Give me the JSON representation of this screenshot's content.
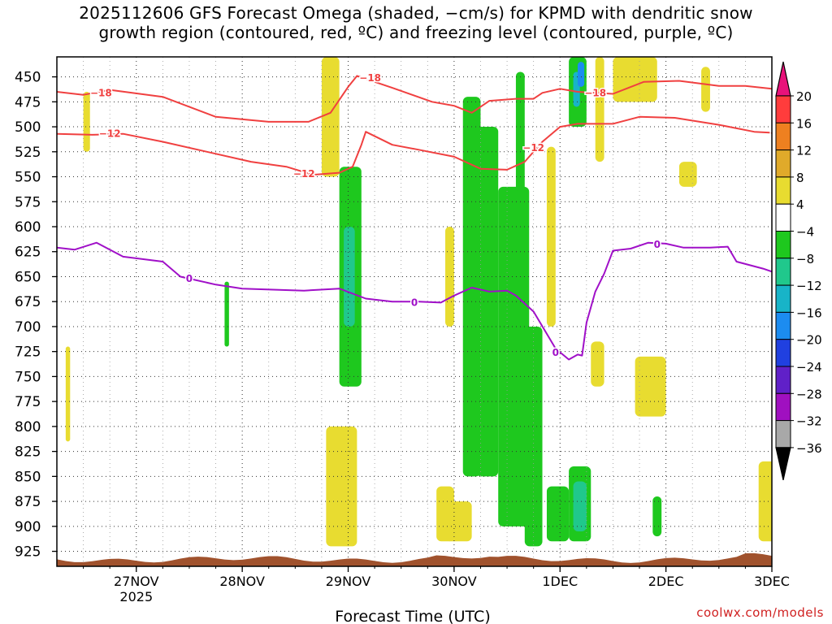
{
  "title": {
    "line1": "2025112606 GFS Forecast Omega (shaded, −cm/s) for KPMD with dendritic snow",
    "line2": "growth region (contoured, red, ºC) and freezing level (contoured, purple, ºC)"
  },
  "credit": "coolwx.com/models",
  "chart_data": {
    "type": "heatmap",
    "title": "2025112606 GFS Forecast Omega (shaded, −cm/s) for KPMD with dendritic snow growth region (contoured, red, ºC) and freezing level (contoured, purple, ºC)",
    "xlabel": "Forecast Time (UTC)",
    "ylabel": "Pressure (hPa)",
    "x_unit": "hours since 2025-11-26 06Z",
    "xlim": [
      0,
      162
    ],
    "ylim": [
      430,
      940
    ],
    "grid": true,
    "x_ticks": [
      {
        "x": 18,
        "label": "27NOV",
        "sublabel": "2025"
      },
      {
        "x": 42,
        "label": "28NOV",
        "sublabel": ""
      },
      {
        "x": 66,
        "label": "29NOV",
        "sublabel": ""
      },
      {
        "x": 90,
        "label": "30NOV",
        "sublabel": ""
      },
      {
        "x": 114,
        "label": "1DEC",
        "sublabel": ""
      },
      {
        "x": 138,
        "label": "2DEC",
        "sublabel": ""
      },
      {
        "x": 162,
        "label": "3DEC",
        "sublabel": ""
      }
    ],
    "y_ticks": [
      450,
      475,
      500,
      525,
      550,
      575,
      600,
      625,
      650,
      675,
      700,
      725,
      750,
      775,
      800,
      825,
      850,
      875,
      900,
      925
    ],
    "colorbar": {
      "labels": [
        "20",
        "16",
        "12",
        "8",
        "4",
        "−4",
        "−8",
        "−12",
        "−16",
        "−20",
        "−24",
        "−28",
        "−32",
        "−36"
      ],
      "bins": [
        {
          "from": 20,
          "to": 24,
          "color": "#e8127a"
        },
        {
          "from": 16,
          "to": 20,
          "color": "#ff3c3c"
        },
        {
          "from": 12,
          "to": 16,
          "color": "#ee8020"
        },
        {
          "from": 8,
          "to": 12,
          "color": "#e0aa2a"
        },
        {
          "from": 4,
          "to": 8,
          "color": "#e8dc30"
        },
        {
          "from": -4,
          "to": 4,
          "color": "#ffffff"
        },
        {
          "from": -8,
          "to": -4,
          "color": "#1ec81e"
        },
        {
          "from": -12,
          "to": -8,
          "color": "#20c88c"
        },
        {
          "from": -16,
          "to": -12,
          "color": "#18b4c8"
        },
        {
          "from": -20,
          "to": -16,
          "color": "#1c8cf0"
        },
        {
          "from": -24,
          "to": -20,
          "color": "#2040e0"
        },
        {
          "from": -28,
          "to": -24,
          "color": "#6020c8"
        },
        {
          "from": -32,
          "to": -28,
          "color": "#a010c0"
        },
        {
          "from": -36,
          "to": -32,
          "color": "#a8a8a8"
        },
        {
          "from": -40,
          "to": -36,
          "color": "#000000"
        }
      ]
    },
    "omega_regions": [
      {
        "t0": 126,
        "t1": 136,
        "p0": 430,
        "p1": 475,
        "value": 6
      },
      {
        "t0": 116,
        "t1": 120,
        "p0": 430,
        "p1": 500,
        "value": -6
      },
      {
        "t0": 117,
        "t1": 118.5,
        "p0": 445,
        "p1": 480,
        "value": -13
      },
      {
        "t0": 118,
        "t1": 119.5,
        "p0": 435,
        "p1": 460,
        "value": -18
      },
      {
        "t0": 122,
        "t1": 124,
        "p0": 430,
        "p1": 535,
        "value": 6
      },
      {
        "t0": 60,
        "t1": 64,
        "p0": 430,
        "p1": 550,
        "value": 5
      },
      {
        "t0": 64,
        "t1": 69,
        "p0": 540,
        "p1": 760,
        "value": -6
      },
      {
        "t0": 65,
        "t1": 67.5,
        "p0": 600,
        "p1": 700,
        "value": -9
      },
      {
        "t0": 92,
        "t1": 96,
        "p0": 470,
        "p1": 850,
        "value": -6
      },
      {
        "t0": 95,
        "t1": 100,
        "p0": 500,
        "p1": 850,
        "value": -6
      },
      {
        "t0": 100,
        "t1": 107,
        "p0": 560,
        "p1": 900,
        "value": -6
      },
      {
        "t0": 106,
        "t1": 110,
        "p0": 700,
        "p1": 920,
        "value": -6
      },
      {
        "t0": 111,
        "t1": 113,
        "p0": 520,
        "p1": 700,
        "value": 5
      },
      {
        "t0": 116,
        "t1": 121,
        "p0": 840,
        "p1": 915,
        "value": -6
      },
      {
        "t0": 117,
        "t1": 120,
        "p0": 855,
        "p1": 905,
        "value": -10
      },
      {
        "t0": 111,
        "t1": 116,
        "p0": 860,
        "p1": 915,
        "value": -6
      },
      {
        "t0": 121,
        "t1": 124,
        "p0": 715,
        "p1": 760,
        "value": 5
      },
      {
        "t0": 131,
        "t1": 138,
        "p0": 730,
        "p1": 790,
        "value": 5
      },
      {
        "t0": 135,
        "t1": 137,
        "p0": 870,
        "p1": 910,
        "value": -6
      },
      {
        "t0": 61,
        "t1": 68,
        "p0": 800,
        "p1": 920,
        "value": 5
      },
      {
        "t0": 86,
        "t1": 90,
        "p0": 860,
        "p1": 915,
        "value": 5
      },
      {
        "t0": 88,
        "t1": 94,
        "p0": 875,
        "p1": 915,
        "value": 5
      },
      {
        "t0": 159,
        "t1": 176,
        "p0": 835,
        "p1": 915,
        "value": 5
      },
      {
        "t0": 166,
        "t1": 169,
        "p0": 878,
        "p1": 895,
        "value": 9
      },
      {
        "t0": 169,
        "t1": 178,
        "p0": 530,
        "p1": 790,
        "value": -6
      },
      {
        "t0": 172,
        "t1": 178,
        "p0": 600,
        "p1": 780,
        "value": -8
      },
      {
        "t0": 175,
        "t1": 182,
        "p0": 500,
        "p1": 820,
        "value": -6
      },
      {
        "t0": 178,
        "t1": 181,
        "p0": 560,
        "p1": 760,
        "value": -10
      },
      {
        "t0": 182,
        "t1": 186,
        "p0": 435,
        "p1": 700,
        "value": -10
      },
      {
        "t0": 183,
        "t1": 185,
        "p0": 440,
        "p1": 520,
        "value": -14
      },
      {
        "t0": 186,
        "t1": 190,
        "p0": 560,
        "p1": 850,
        "value": -6
      },
      {
        "t0": 187,
        "t1": 190,
        "p0": 480,
        "p1": 560,
        "value": -10
      },
      {
        "t0": 2,
        "t1": 3,
        "p0": 720,
        "p1": 815,
        "value": 5
      },
      {
        "t0": 6,
        "t1": 7.5,
        "p0": 465,
        "p1": 525,
        "value": 5
      },
      {
        "t0": 38,
        "t1": 39,
        "p0": 655,
        "p1": 720,
        "value": -6
      },
      {
        "t0": 88,
        "t1": 90,
        "p0": 600,
        "p1": 700,
        "value": 5
      },
      {
        "t0": 104,
        "t1": 106,
        "p0": 445,
        "p1": 565,
        "value": -6
      },
      {
        "t0": 141,
        "t1": 145,
        "p0": 535,
        "p1": 560,
        "value": 5
      },
      {
        "t0": 146,
        "t1": 148,
        "p0": 440,
        "p1": 485,
        "value": 5
      },
      {
        "t0": 170,
        "t1": 174,
        "p0": 430,
        "p1": 470,
        "value": -6
      }
    ],
    "series": [
      {
        "name": "-18 ºC",
        "color": "#f04040",
        "label": "−18",
        "points": [
          [
            0,
            465
          ],
          [
            6,
            468
          ],
          [
            12,
            463
          ],
          [
            24,
            470
          ],
          [
            36,
            490
          ],
          [
            48,
            495
          ],
          [
            57,
            495
          ],
          [
            62,
            486
          ],
          [
            66,
            460
          ],
          [
            68,
            449
          ],
          [
            76,
            461
          ],
          [
            85,
            475
          ],
          [
            90,
            479
          ],
          [
            94,
            486
          ],
          [
            98,
            474
          ],
          [
            104,
            472
          ],
          [
            108,
            472
          ],
          [
            110,
            466
          ],
          [
            114,
            462
          ],
          [
            118,
            465
          ],
          [
            126,
            467
          ],
          [
            133,
            455
          ],
          [
            141,
            454
          ],
          [
            150,
            459
          ],
          [
            156,
            459
          ],
          [
            162,
            462
          ],
          [
            168,
            485
          ],
          [
            174,
            495
          ],
          [
            178,
            502
          ],
          [
            181,
            502
          ],
          [
            183,
            505
          ]
        ],
        "label_at": [
          [
            10,
            466
          ],
          [
            71,
            451
          ],
          [
            122,
            466
          ],
          [
            166,
            462
          ]
        ]
      },
      {
        "name": "-12 ºC",
        "color": "#f04040",
        "label": "−12",
        "points": [
          [
            0,
            507
          ],
          [
            8,
            508
          ],
          [
            15,
            507
          ],
          [
            24,
            515
          ],
          [
            34,
            525
          ],
          [
            44,
            535
          ],
          [
            52,
            540
          ],
          [
            58,
            548
          ],
          [
            64,
            546
          ],
          [
            67,
            540
          ],
          [
            69,
            518
          ],
          [
            70,
            505
          ],
          [
            76,
            518
          ],
          [
            82,
            523
          ],
          [
            90,
            530
          ],
          [
            96,
            542
          ],
          [
            102,
            543
          ],
          [
            106,
            535
          ],
          [
            110,
            515
          ],
          [
            114,
            500
          ],
          [
            118,
            497
          ],
          [
            126,
            497
          ],
          [
            132,
            490
          ],
          [
            140,
            491
          ],
          [
            150,
            498
          ],
          [
            158,
            505
          ],
          [
            162,
            506
          ],
          [
            166,
            520
          ],
          [
            171,
            540
          ],
          [
            176,
            560
          ],
          [
            180,
            578
          ],
          [
            183,
            578
          ]
        ],
        "label_at": [
          [
            12,
            507
          ],
          [
            56,
            547
          ],
          [
            108,
            521
          ],
          [
            164,
            506
          ]
        ]
      },
      {
        "name": "0 ºC",
        "color": "#a010c8",
        "label": "0",
        "points": [
          [
            0,
            621
          ],
          [
            4,
            623
          ],
          [
            9,
            616
          ],
          [
            15,
            630
          ],
          [
            24,
            635
          ],
          [
            28,
            650
          ],
          [
            36,
            658
          ],
          [
            42,
            662
          ],
          [
            56,
            664
          ],
          [
            64,
            662
          ],
          [
            70,
            672
          ],
          [
            76,
            675
          ],
          [
            82,
            675
          ],
          [
            87,
            676
          ],
          [
            90,
            669
          ],
          [
            94,
            661
          ],
          [
            98,
            665
          ],
          [
            102,
            664
          ],
          [
            104,
            669
          ],
          [
            108,
            685
          ],
          [
            113,
            722
          ],
          [
            116,
            733
          ],
          [
            118,
            728
          ],
          [
            119,
            729
          ],
          [
            120,
            696
          ],
          [
            122,
            665
          ],
          [
            124,
            647
          ],
          [
            126,
            624
          ],
          [
            130,
            622
          ],
          [
            134,
            616
          ],
          [
            138,
            617
          ],
          [
            142,
            621
          ],
          [
            148,
            621
          ],
          [
            152,
            620
          ],
          [
            154,
            635
          ],
          [
            160,
            642
          ],
          [
            164,
            648
          ],
          [
            168,
            664
          ],
          [
            172,
            670
          ],
          [
            176,
            687
          ],
          [
            180,
            705
          ],
          [
            181,
            730
          ],
          [
            183,
            737
          ]
        ],
        "label_at": [
          [
            30,
            652
          ],
          [
            81,
            676
          ],
          [
            113,
            726
          ],
          [
            136,
            618
          ],
          [
            172,
            655
          ]
        ]
      }
    ],
    "terrain_color": "#a0522d"
  }
}
